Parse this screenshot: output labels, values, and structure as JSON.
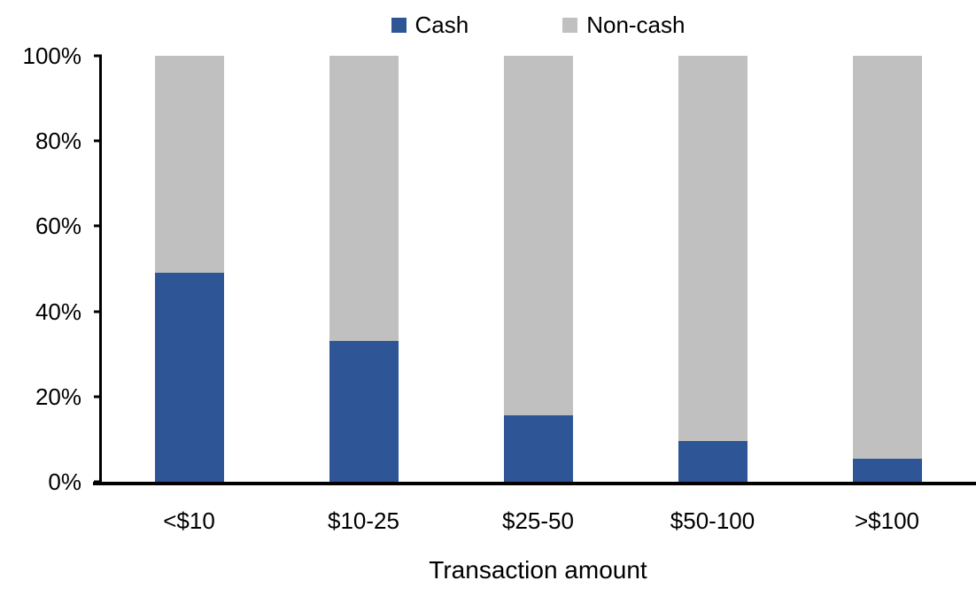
{
  "chart_data": {
    "type": "bar",
    "stacked": true,
    "title": "",
    "xlabel": "Transaction amount",
    "ylabel": "",
    "ylim": [
      0,
      100
    ],
    "yticks": [
      "0%",
      "20%",
      "40%",
      "60%",
      "80%",
      "100%"
    ],
    "grid": false,
    "legend_position": "top",
    "categories": [
      "<$10",
      "$10-25",
      "$25-50",
      "$50-100",
      ">$100"
    ],
    "series": [
      {
        "name": "Cash",
        "color": "#2E5595",
        "values": [
          49,
          33,
          15.5,
          9.5,
          5.5
        ]
      },
      {
        "name": "Non-cash",
        "color": "#C0C0C0",
        "values": [
          51,
          67,
          84.5,
          90.5,
          94.5
        ]
      }
    ]
  },
  "colors": {
    "axis": "#000000",
    "background": "#FFFFFF",
    "text": "#000000"
  }
}
